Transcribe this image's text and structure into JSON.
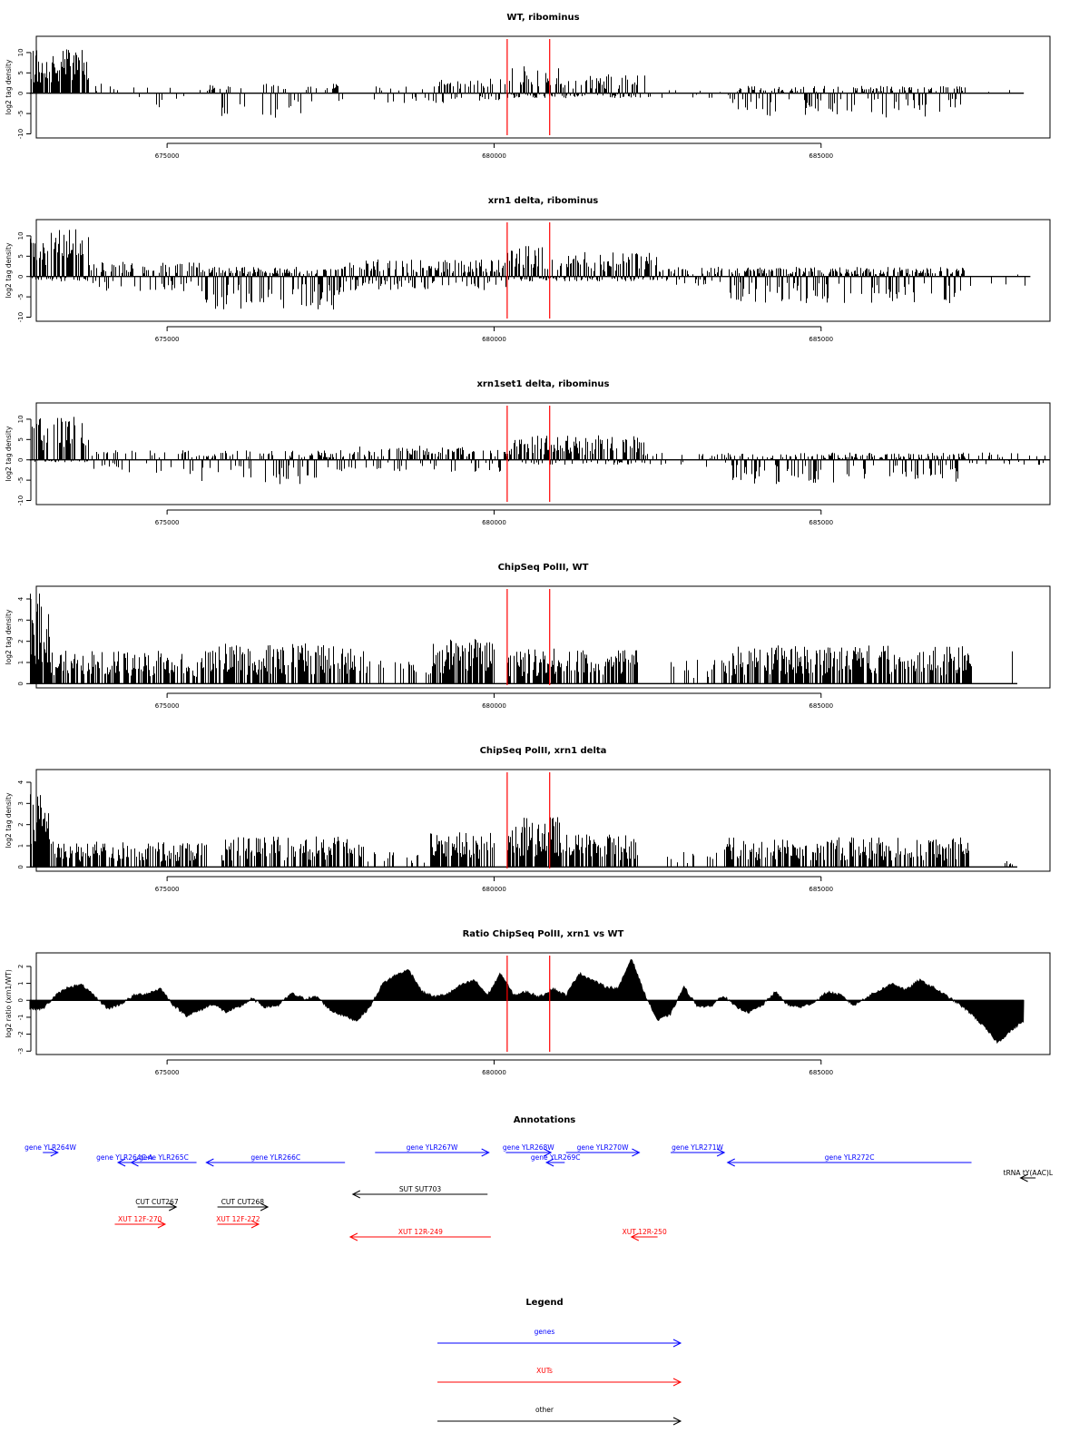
{
  "chart_data": [
    {
      "type": "bar",
      "title": "WT, ribominus",
      "ylabel": "log2 tag density",
      "xlim": [
        673000,
        688500
      ],
      "ylim": [
        -11,
        14
      ],
      "yticks": [
        -10,
        -5,
        0,
        5,
        10
      ],
      "xticks": [
        675000,
        680000,
        685000
      ],
      "xtick_labels": [
        "675000",
        "680000",
        "685000"
      ],
      "profile": [
        {
          "x0": 672900,
          "x1": 673800,
          "pos": 9,
          "neg": 0,
          "d": 0.9
        },
        {
          "x0": 673800,
          "x1": 675000,
          "pos": 2,
          "neg": -3,
          "d": 0.15
        },
        {
          "x0": 675000,
          "x1": 675600,
          "pos": 1.5,
          "neg": -2,
          "d": 0.15
        },
        {
          "x0": 675600,
          "x1": 677700,
          "pos": 2,
          "neg": -5,
          "d": 0.3
        },
        {
          "x0": 677700,
          "x1": 678100,
          "pos": 0.5,
          "neg": -1,
          "d": 0.1
        },
        {
          "x0": 678100,
          "x1": 679000,
          "pos": 2.5,
          "neg": -2,
          "d": 0.35
        },
        {
          "x0": 679000,
          "x1": 680200,
          "pos": 3,
          "neg": -2,
          "d": 0.45
        },
        {
          "x0": 680200,
          "x1": 681000,
          "pos": 6,
          "neg": -1,
          "d": 0.75
        },
        {
          "x0": 681000,
          "x1": 682300,
          "pos": 4,
          "neg": -1,
          "d": 0.65
        },
        {
          "x0": 682300,
          "x1": 683600,
          "pos": 1,
          "neg": -1,
          "d": 0.15
        },
        {
          "x0": 683600,
          "x1": 687200,
          "pos": 1.5,
          "neg": -5,
          "d": 0.55
        },
        {
          "x0": 687200,
          "x1": 688100,
          "pos": 1,
          "neg": -1,
          "d": 0.1
        }
      ],
      "markers": [
        680200,
        680850
      ]
    },
    {
      "type": "bar",
      "title": "xrn1 delta, ribominus",
      "ylabel": "log2 tag density",
      "xlim": [
        673000,
        688500
      ],
      "ylim": [
        -11,
        14
      ],
      "yticks": [
        -10,
        -5,
        0,
        5,
        10
      ],
      "xticks": [
        675000,
        680000,
        685000
      ],
      "xtick_labels": [
        "675000",
        "680000",
        "685000"
      ],
      "profile": [
        {
          "x0": 672900,
          "x1": 673800,
          "pos": 10,
          "neg": -1,
          "d": 0.95
        },
        {
          "x0": 673800,
          "x1": 675500,
          "pos": 3,
          "neg": -3,
          "d": 0.6
        },
        {
          "x0": 675500,
          "x1": 677700,
          "pos": 2,
          "neg": -7,
          "d": 0.85
        },
        {
          "x0": 677700,
          "x1": 680200,
          "pos": 3.5,
          "neg": -3,
          "d": 0.75
        },
        {
          "x0": 680200,
          "x1": 681000,
          "pos": 6.5,
          "neg": -1,
          "d": 0.9
        },
        {
          "x0": 681000,
          "x1": 682500,
          "pos": 5,
          "neg": -1,
          "d": 0.85
        },
        {
          "x0": 682500,
          "x1": 683600,
          "pos": 2,
          "neg": -2,
          "d": 0.5
        },
        {
          "x0": 683600,
          "x1": 687200,
          "pos": 2,
          "neg": -5.5,
          "d": 0.85
        },
        {
          "x0": 687200,
          "x1": 688200,
          "pos": 1,
          "neg": -2,
          "d": 0.15
        }
      ],
      "markers": [
        680200,
        680850
      ]
    },
    {
      "type": "bar",
      "title": "xrn1set1 delta, ribominus",
      "ylabel": "log2 tag density",
      "xlim": [
        673000,
        688500
      ],
      "ylim": [
        -11,
        14
      ],
      "yticks": [
        -10,
        -5,
        0,
        5,
        10
      ],
      "xticks": [
        675000,
        680000,
        685000
      ],
      "xtick_labels": [
        "675000",
        "680000",
        "685000"
      ],
      "profile": [
        {
          "x0": 672900,
          "x1": 673800,
          "pos": 9,
          "neg": -0.5,
          "d": 0.9
        },
        {
          "x0": 673800,
          "x1": 675500,
          "pos": 2,
          "neg": -3,
          "d": 0.3
        },
        {
          "x0": 675500,
          "x1": 677700,
          "pos": 2,
          "neg": -5,
          "d": 0.5
        },
        {
          "x0": 677700,
          "x1": 680200,
          "pos": 3,
          "neg": -2.5,
          "d": 0.6
        },
        {
          "x0": 680200,
          "x1": 681000,
          "pos": 5,
          "neg": -1,
          "d": 0.85
        },
        {
          "x0": 681000,
          "x1": 682300,
          "pos": 5,
          "neg": -1,
          "d": 0.8
        },
        {
          "x0": 682300,
          "x1": 683600,
          "pos": 1.5,
          "neg": -1.5,
          "d": 0.3
        },
        {
          "x0": 683600,
          "x1": 687200,
          "pos": 1.5,
          "neg": -5,
          "d": 0.7
        },
        {
          "x0": 687200,
          "x1": 688500,
          "pos": 1.5,
          "neg": -1,
          "d": 0.3
        }
      ],
      "markers": [
        680200,
        680850
      ]
    },
    {
      "type": "bar",
      "title": "ChipSeq PolII, WT",
      "ylabel": "log2 tag density",
      "xlim": [
        673000,
        688500
      ],
      "ylim": [
        -0.2,
        4.6
      ],
      "yticks": [
        0,
        1,
        2,
        3,
        4
      ],
      "xticks": [
        675000,
        680000,
        685000
      ],
      "xtick_labels": [
        "675000",
        "680000",
        "685000"
      ],
      "profile": [
        {
          "x0": 672900,
          "x1": 673200,
          "pos": 3.6,
          "neg": 0,
          "d": 0.95
        },
        {
          "x0": 673200,
          "x1": 675600,
          "pos": 1.3,
          "neg": 0,
          "d": 0.65
        },
        {
          "x0": 675600,
          "x1": 678000,
          "pos": 1.6,
          "neg": 0,
          "d": 0.7
        },
        {
          "x0": 678000,
          "x1": 679000,
          "pos": 1.0,
          "neg": 0,
          "d": 0.2
        },
        {
          "x0": 679000,
          "x1": 680000,
          "pos": 1.8,
          "neg": 0,
          "d": 0.75
        },
        {
          "x0": 680200,
          "x1": 682200,
          "pos": 1.4,
          "neg": 0,
          "d": 0.7
        },
        {
          "x0": 682500,
          "x1": 683500,
          "pos": 1.0,
          "neg": 0,
          "d": 0.15
        },
        {
          "x0": 683500,
          "x1": 687300,
          "pos": 1.5,
          "neg": 0,
          "d": 0.7
        },
        {
          "x0": 687800,
          "x1": 688000,
          "pos": 1.6,
          "neg": 0,
          "d": 0.2
        }
      ],
      "markers": [
        680200,
        680850
      ]
    },
    {
      "type": "bar",
      "title": "ChipSeq PolII, xrn1 delta",
      "ylabel": "log2 tag density",
      "xlim": [
        673000,
        688500
      ],
      "ylim": [
        -0.2,
        4.6
      ],
      "yticks": [
        0,
        1,
        2,
        3,
        4
      ],
      "xticks": [
        675000,
        680000,
        685000
      ],
      "xtick_labels": [
        "675000",
        "680000",
        "685000"
      ],
      "profile": [
        {
          "x0": 672900,
          "x1": 673200,
          "pos": 3.2,
          "neg": 0,
          "d": 0.95
        },
        {
          "x0": 673200,
          "x1": 675600,
          "pos": 1.0,
          "neg": 0,
          "d": 0.6
        },
        {
          "x0": 675800,
          "x1": 678000,
          "pos": 1.2,
          "neg": 0,
          "d": 0.6
        },
        {
          "x0": 678000,
          "x1": 679000,
          "pos": 0.6,
          "neg": 0,
          "d": 0.2
        },
        {
          "x0": 679000,
          "x1": 680000,
          "pos": 1.4,
          "neg": 0,
          "d": 0.7
        },
        {
          "x0": 680200,
          "x1": 681000,
          "pos": 2.0,
          "neg": 0,
          "d": 0.9
        },
        {
          "x0": 681000,
          "x1": 682200,
          "pos": 1.3,
          "neg": 0,
          "d": 0.7
        },
        {
          "x0": 682500,
          "x1": 683500,
          "pos": 0.6,
          "neg": 0,
          "d": 0.15
        },
        {
          "x0": 683500,
          "x1": 687300,
          "pos": 1.2,
          "neg": 0,
          "d": 0.65
        },
        {
          "x0": 687800,
          "x1": 688000,
          "pos": 0.3,
          "neg": 0,
          "d": 0.2
        }
      ],
      "markers": [
        680200,
        680850
      ]
    },
    {
      "type": "area",
      "title": "Ratio ChipSeq PolII, xrn1 vs WT",
      "ylabel": "log2 ratio (xrn1/WT)",
      "xlim": [
        673000,
        688500
      ],
      "ylim": [
        -3.2,
        2.8
      ],
      "yticks": [
        -3,
        -2,
        -1,
        0,
        1,
        2
      ],
      "xticks": [
        675000,
        680000,
        685000
      ],
      "xtick_labels": [
        "675000",
        "680000",
        "685000"
      ],
      "x": [
        672900,
        673100,
        673300,
        673500,
        673700,
        673900,
        674100,
        674300,
        674500,
        674700,
        674900,
        675100,
        675300,
        675500,
        675700,
        675900,
        676100,
        676300,
        676500,
        676700,
        676900,
        677100,
        677300,
        677500,
        677700,
        677900,
        678100,
        678300,
        678500,
        678700,
        678900,
        679100,
        679300,
        679500,
        679700,
        679900,
        680100,
        680300,
        680500,
        680700,
        680900,
        681100,
        681300,
        681500,
        681700,
        681900,
        682100,
        682300,
        682500,
        682700,
        682900,
        683100,
        683300,
        683500,
        683700,
        683900,
        684100,
        684300,
        684500,
        684700,
        684900,
        685100,
        685300,
        685500,
        685700,
        685900,
        686100,
        686300,
        686500,
        686700,
        686900,
        687100,
        687300,
        687500,
        687700,
        687900,
        688100
      ],
      "y": [
        -0.5,
        -0.5,
        0.3,
        0.8,
        0.9,
        0.2,
        -0.5,
        -0.2,
        0.3,
        0.4,
        0.7,
        -0.3,
        -0.9,
        -0.6,
        -0.2,
        -0.7,
        -0.4,
        0.1,
        -0.4,
        -0.3,
        0.4,
        0.1,
        0.2,
        -0.6,
        -0.9,
        -1.2,
        -0.4,
        1.0,
        1.5,
        1.8,
        0.5,
        0.2,
        0.4,
        0.9,
        1.2,
        0.3,
        1.6,
        0.3,
        0.5,
        0.2,
        0.7,
        0.3,
        1.6,
        1.2,
        0.8,
        0.7,
        2.5,
        0.4,
        -1.2,
        -0.8,
        0.8,
        -0.3,
        -0.4,
        0.3,
        -0.4,
        -0.7,
        -0.3,
        0.5,
        -0.3,
        -0.4,
        -0.1,
        0.5,
        0.3,
        -0.3,
        0.2,
        0.6,
        1.0,
        0.6,
        1.2,
        0.8,
        0.3,
        -0.2,
        -0.8,
        -1.6,
        -2.5,
        -1.8,
        -1.2
      ],
      "markers": [
        680200,
        680850
      ]
    }
  ],
  "annotations": {
    "title": "Annotations",
    "features": [
      {
        "label": "gene YLR264W",
        "x0": 673100,
        "x1": 673330,
        "strand": "+",
        "color": "#0000ff",
        "row": 0
      },
      {
        "label": "gene YLR264C-A",
        "x0": 674250,
        "x1": 674450,
        "strand": "-",
        "color": "#0000ff",
        "row": 1
      },
      {
        "label": "gene YLR265C",
        "x0": 674450,
        "x1": 675450,
        "strand": "-",
        "color": "#0000ff",
        "row": 1
      },
      {
        "label": "gene YLR266C",
        "x0": 675600,
        "x1": 677720,
        "strand": "-",
        "color": "#0000ff",
        "row": 1
      },
      {
        "label": "gene YLR267W",
        "x0": 678180,
        "x1": 679920,
        "strand": "+",
        "color": "#0000ff",
        "row": 0
      },
      {
        "label": "gene YLR268W",
        "x0": 680180,
        "x1": 680870,
        "strand": "+",
        "color": "#0000ff",
        "row": 0
      },
      {
        "label": "gene YLR269C",
        "x0": 680800,
        "x1": 681080,
        "strand": "-",
        "color": "#0000ff",
        "row": 1
      },
      {
        "label": "gene YLR270W",
        "x0": 681100,
        "x1": 682220,
        "strand": "+",
        "color": "#0000ff",
        "row": 0
      },
      {
        "label": "gene YLR271W",
        "x0": 682700,
        "x1": 683520,
        "strand": "+",
        "color": "#0000ff",
        "row": 0
      },
      {
        "label": "gene YLR272C",
        "x0": 683570,
        "x1": 687300,
        "strand": "-",
        "color": "#0000ff",
        "row": 1
      },
      {
        "label": "tRNA tY(AAC)L",
        "x0": 688050,
        "x1": 688280,
        "strand": "-",
        "color": "#000000",
        "row": 2
      },
      {
        "label": "SUT SUT703",
        "x0": 677840,
        "x1": 679900,
        "strand": "-",
        "color": "#000000",
        "row": 3
      },
      {
        "label": "CUT CUT267",
        "x0": 674550,
        "x1": 675140,
        "strand": "+",
        "color": "#000000",
        "row": 4
      },
      {
        "label": "CUT CUT268",
        "x0": 675770,
        "x1": 676540,
        "strand": "+",
        "color": "#000000",
        "row": 4
      },
      {
        "label": "XUT 12F-270",
        "x0": 674200,
        "x1": 674970,
        "strand": "+",
        "color": "#ff0000",
        "row": 5
      },
      {
        "label": "XUT 12F-272",
        "x0": 675770,
        "x1": 676400,
        "strand": "+",
        "color": "#ff0000",
        "row": 5
      },
      {
        "label": "XUT 12R-249",
        "x0": 677800,
        "x1": 679950,
        "strand": "-",
        "color": "#ff0000",
        "row": 6
      },
      {
        "label": "XUT 12R-250",
        "x0": 682100,
        "x1": 682500,
        "strand": "-",
        "color": "#ff0000",
        "row": 6
      }
    ]
  },
  "legend": {
    "title": "Legend",
    "items": [
      {
        "label": "genes",
        "color": "#0000ff"
      },
      {
        "label": "XUTs",
        "color": "#ff0000"
      },
      {
        "label": "other",
        "color": "#000000"
      }
    ]
  }
}
